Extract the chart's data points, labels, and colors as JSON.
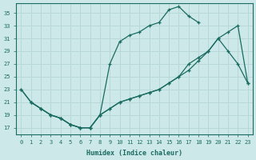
{
  "xlabel": "Humidex (Indice chaleur)",
  "bg_color": "#cce8e8",
  "line_color": "#1a6b60",
  "grid_color": "#b8d8d8",
  "xlim": [
    -0.5,
    23.5
  ],
  "ylim": [
    16,
    36.5
  ],
  "xticks": [
    0,
    1,
    2,
    3,
    4,
    5,
    6,
    7,
    8,
    9,
    10,
    11,
    12,
    13,
    14,
    15,
    16,
    17,
    18,
    19,
    20,
    21,
    22,
    23
  ],
  "yticks": [
    17,
    19,
    21,
    23,
    25,
    27,
    29,
    31,
    33,
    35
  ],
  "line1_x": [
    0,
    1,
    2,
    3,
    4,
    5,
    6,
    7,
    8,
    9,
    10,
    11,
    12,
    13,
    14,
    15,
    16,
    17,
    18
  ],
  "line1_y": [
    23,
    21,
    20,
    19,
    18.5,
    17.5,
    17,
    17,
    19,
    27,
    30.5,
    31.5,
    32,
    33,
    33.5,
    35.5,
    36,
    34.5,
    33.5
  ],
  "line2_x": [
    0,
    1,
    2,
    3,
    4,
    5,
    6,
    7,
    8,
    9,
    10,
    11,
    12,
    13,
    14,
    15,
    16,
    17,
    18,
    19,
    20,
    21,
    22,
    23
  ],
  "line2_y": [
    23,
    21,
    20,
    19,
    18.5,
    17.5,
    17,
    17,
    19,
    20,
    21,
    21.5,
    22,
    22.5,
    23,
    24,
    25,
    26,
    27.5,
    29,
    31,
    32,
    33,
    24
  ],
  "line3_x": [
    1,
    2,
    3,
    4,
    5,
    6,
    7,
    8,
    9,
    10,
    11,
    12,
    13,
    14,
    15,
    16,
    17,
    18,
    19,
    20,
    21,
    22,
    23
  ],
  "line3_y": [
    21,
    20,
    19,
    18.5,
    17.5,
    17,
    17,
    19,
    20,
    21,
    21.5,
    22,
    22.5,
    23,
    24,
    25,
    27,
    28,
    29,
    31,
    29,
    27,
    24
  ]
}
